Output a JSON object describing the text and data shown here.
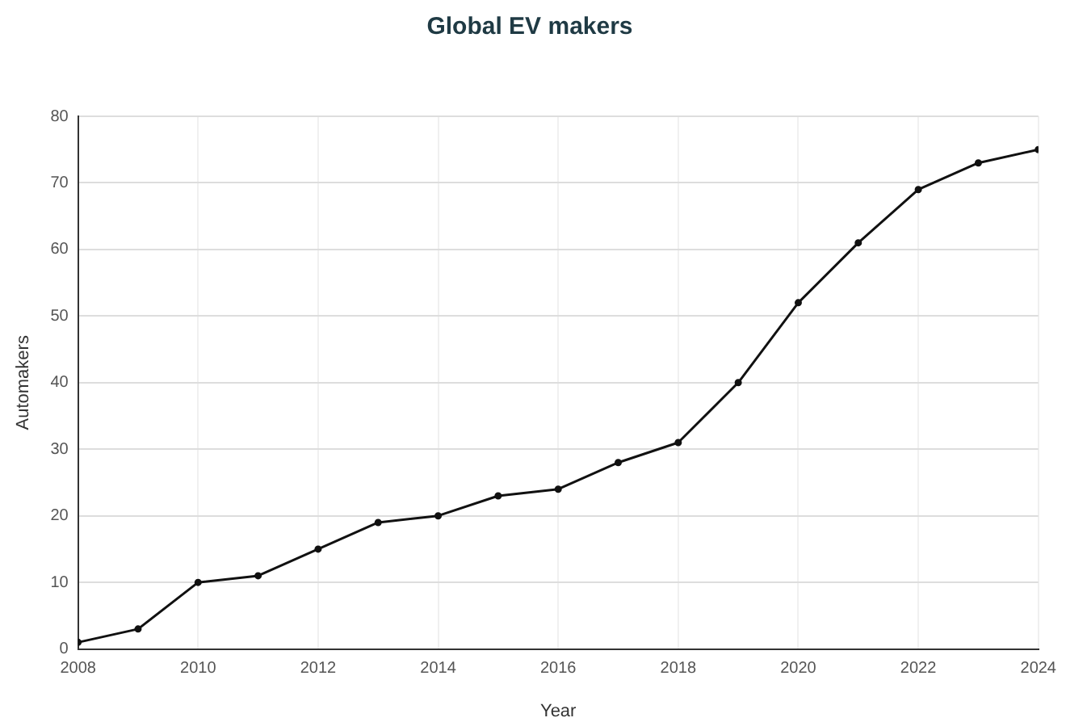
{
  "chart_data": {
    "type": "line",
    "title": "Global EV makers",
    "xlabel": "Year",
    "ylabel": "Automakers",
    "x": [
      2008,
      2009,
      2010,
      2011,
      2012,
      2013,
      2014,
      2015,
      2016,
      2017,
      2018,
      2019,
      2020,
      2021,
      2022,
      2023,
      2024
    ],
    "series": [
      {
        "color": "#111111",
        "values": [
          1,
          3,
          10,
          11,
          15,
          19,
          20,
          23,
          24,
          28,
          31,
          40,
          52,
          61,
          69,
          73,
          75
        ]
      }
    ],
    "xlim": [
      2008,
      2024
    ],
    "xticks": [
      2008,
      2010,
      2012,
      2014,
      2016,
      2018,
      2020,
      2022,
      2024
    ],
    "ylim": [
      0,
      80
    ],
    "yticks": [
      0,
      10,
      20,
      30,
      40,
      50,
      60,
      70,
      80
    ],
    "grid": true,
    "legend": false,
    "marker": "circle",
    "line_style": "solid"
  }
}
